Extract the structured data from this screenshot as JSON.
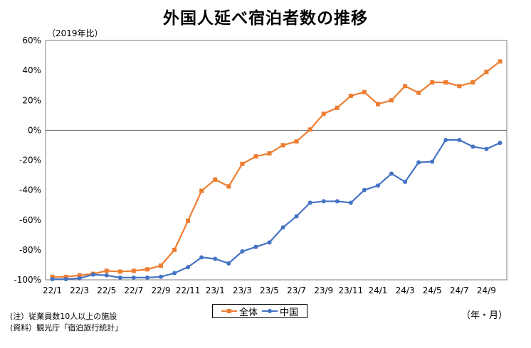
{
  "chart_data": {
    "type": "line",
    "title": "外国人延べ宿泊者数の推移",
    "ylabel": "（2019年比）",
    "xlabel": "",
    "ylim": [
      -100,
      60
    ],
    "y_ticks": [
      "60%",
      "40%",
      "20%",
      "0%",
      "-20%",
      "-40%",
      "-60%",
      "-80%",
      "-100%"
    ],
    "x_tick_labels": [
      "22/1",
      "22/3",
      "22/5",
      "22/7",
      "22/9",
      "22/11",
      "23/1",
      "23/3",
      "23/5",
      "23/7",
      "23/9",
      "23/11",
      "24/1",
      "24/3",
      "24/5",
      "24/7",
      "24/9"
    ],
    "categories": [
      "22/1",
      "22/2",
      "22/3",
      "22/4",
      "22/5",
      "22/6",
      "22/7",
      "22/8",
      "22/9",
      "22/10",
      "22/11",
      "22/12",
      "23/1",
      "23/2",
      "23/3",
      "23/4",
      "23/5",
      "23/6",
      "23/7",
      "23/8",
      "23/9",
      "23/10",
      "23/11",
      "23/12",
      "24/1",
      "24/2",
      "24/3",
      "24/4",
      "24/5",
      "24/6",
      "24/7",
      "24/8",
      "24/9",
      "24/10"
    ],
    "series": [
      {
        "name": "全体",
        "color": "#ED7D31",
        "values": [
          -98,
          -98,
          -97,
          -96,
          -94,
          -94.5,
          -94,
          -93,
          -90.5,
          -80,
          -60.5,
          -40.5,
          -33,
          -37.5,
          -22.5,
          -17.5,
          -15.5,
          -10,
          -7.5,
          0.5,
          11,
          15,
          23,
          25.5,
          17.5,
          20,
          29.5,
          25,
          32,
          32,
          29.5,
          32,
          39,
          46
        ]
      },
      {
        "name": "中国",
        "color": "#4472C4",
        "values": [
          -99.5,
          -99.5,
          -99,
          -96.5,
          -97,
          -98.5,
          -98.5,
          -98.5,
          -98,
          -95.5,
          -91.5,
          -85,
          -86,
          -89,
          -81,
          -78,
          -75,
          -65,
          -57.5,
          -48.5,
          -47.5,
          -47.5,
          -48.5,
          -40,
          -37,
          -29,
          -34.5,
          -21.5,
          -21,
          -6.5,
          -6.5,
          -11,
          -12.5,
          -8.5
        ]
      }
    ],
    "grid": false,
    "legend_position": "bottom-center"
  },
  "notes": {
    "unit": "（2019年比）",
    "note1": "(注）従業員数10人以上の施設",
    "note2": "(資料）観光庁「宿泊旅行統計」",
    "period": "（年・月）"
  }
}
